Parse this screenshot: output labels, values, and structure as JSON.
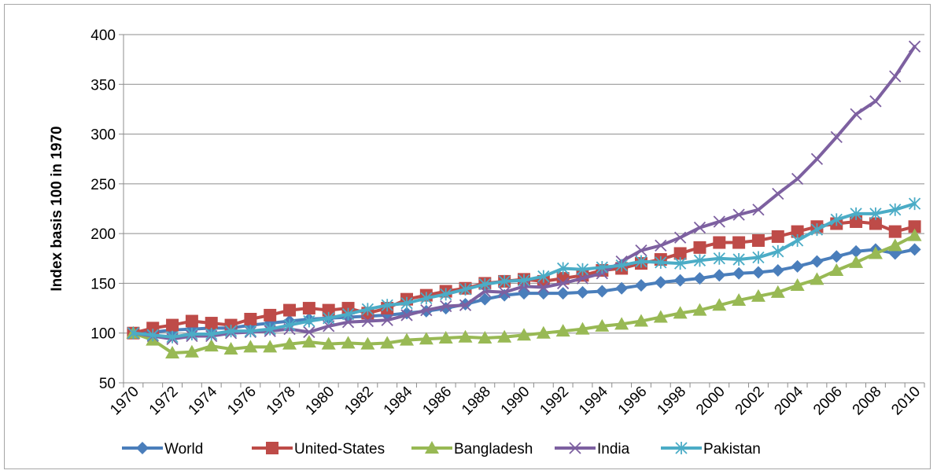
{
  "chart_data": {
    "type": "line",
    "title": "",
    "xlabel": "",
    "ylabel": "Index basis 100 in 1970",
    "ylim": [
      50,
      400
    ],
    "yticks": [
      50,
      100,
      150,
      200,
      250,
      300,
      350,
      400
    ],
    "x": [
      1970,
      1971,
      1972,
      1973,
      1974,
      1975,
      1976,
      1977,
      1978,
      1979,
      1980,
      1981,
      1982,
      1983,
      1984,
      1985,
      1986,
      1987,
      1988,
      1989,
      1990,
      1991,
      1992,
      1993,
      1994,
      1995,
      1996,
      1997,
      1998,
      1999,
      2000,
      2001,
      2002,
      2003,
      2004,
      2005,
      2006,
      2007,
      2008,
      2009,
      2010
    ],
    "xtick_labels": [
      "1970",
      "1972",
      "1974",
      "1976",
      "1978",
      "1980",
      "1982",
      "1984",
      "1986",
      "1988",
      "1990",
      "1992",
      "1994",
      "1996",
      "1998",
      "2000",
      "2002",
      "2004",
      "2006",
      "2008",
      "2010"
    ],
    "grid": "horizontal",
    "legend_position": "bottom",
    "series": [
      {
        "name": "World",
        "color": "#4a7ebb",
        "marker": "diamond",
        "values": [
          100,
          101,
          103,
          104,
          105,
          105,
          108,
          110,
          112,
          114,
          115,
          116,
          117,
          118,
          120,
          122,
          125,
          129,
          134,
          138,
          140,
          140,
          140,
          141,
          142,
          145,
          148,
          151,
          153,
          155,
          158,
          160,
          161,
          163,
          167,
          172,
          177,
          182,
          184,
          180,
          184
        ]
      },
      {
        "name": "United-States",
        "color": "#be4b48",
        "marker": "square",
        "values": [
          100,
          105,
          108,
          112,
          110,
          108,
          114,
          118,
          123,
          125,
          123,
          125,
          120,
          125,
          134,
          138,
          142,
          145,
          150,
          152,
          154,
          152,
          155,
          158,
          163,
          165,
          170,
          174,
          180,
          186,
          191,
          191,
          193,
          197,
          202,
          207,
          210,
          212,
          210,
          202,
          207
        ]
      },
      {
        "name": "Bangladesh",
        "color": "#98b954",
        "marker": "triangle",
        "values": [
          100,
          93,
          80,
          81,
          87,
          84,
          86,
          86,
          89,
          91,
          89,
          90,
          89,
          90,
          93,
          94,
          95,
          96,
          95,
          96,
          98,
          100,
          102,
          104,
          107,
          109,
          112,
          116,
          120,
          123,
          128,
          133,
          137,
          141,
          148,
          154,
          163,
          171,
          180,
          188,
          198
        ]
      },
      {
        "name": "India",
        "color": "#7d60a0",
        "marker": "x",
        "values": [
          100,
          97,
          94,
          97,
          97,
          100,
          101,
          102,
          104,
          101,
          107,
          111,
          112,
          113,
          118,
          123,
          127,
          128,
          142,
          141,
          147,
          146,
          150,
          155,
          160,
          172,
          183,
          188,
          196,
          206,
          212,
          219,
          224,
          240,
          255,
          275,
          297,
          320,
          333,
          358,
          388
        ]
      },
      {
        "name": "Pakistan",
        "color": "#4bacc6",
        "marker": "asterisk",
        "values": [
          100,
          98,
          96,
          99,
          99,
          102,
          102,
          104,
          108,
          112,
          115,
          119,
          124,
          128,
          130,
          135,
          139,
          144,
          149,
          152,
          153,
          157,
          165,
          164,
          166,
          168,
          172,
          171,
          170,
          173,
          175,
          174,
          176,
          182,
          193,
          204,
          214,
          220,
          220,
          224,
          230
        ]
      }
    ]
  }
}
